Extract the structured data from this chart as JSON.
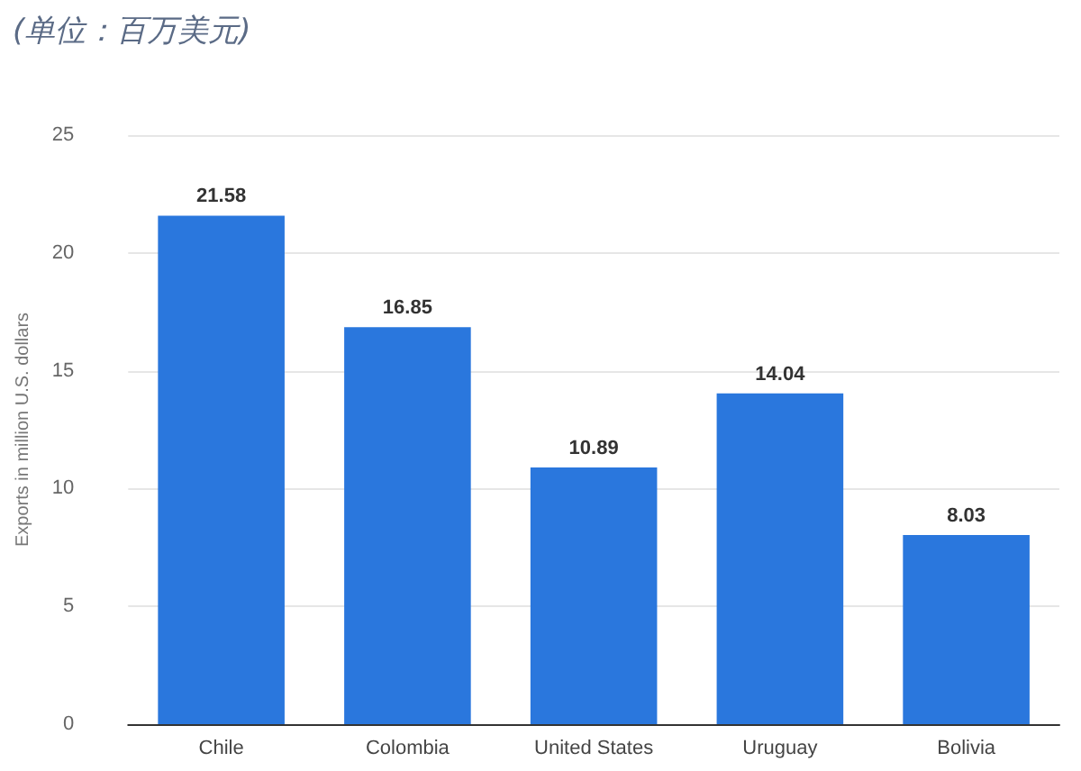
{
  "chart_data": {
    "type": "bar",
    "title": "(单位：百万美元)",
    "ylabel": "Exports in million U.S. dollars",
    "categories": [
      "Chile",
      "Colombia",
      "United States",
      "Uruguay",
      "Bolivia"
    ],
    "values": [
      21.58,
      16.85,
      10.89,
      14.04,
      8.03
    ],
    "color": "#2a77dd",
    "ylim": [
      0,
      25
    ],
    "yticks": [
      0,
      5,
      10,
      15,
      20,
      25
    ],
    "grid": "y",
    "data_labels": true
  }
}
